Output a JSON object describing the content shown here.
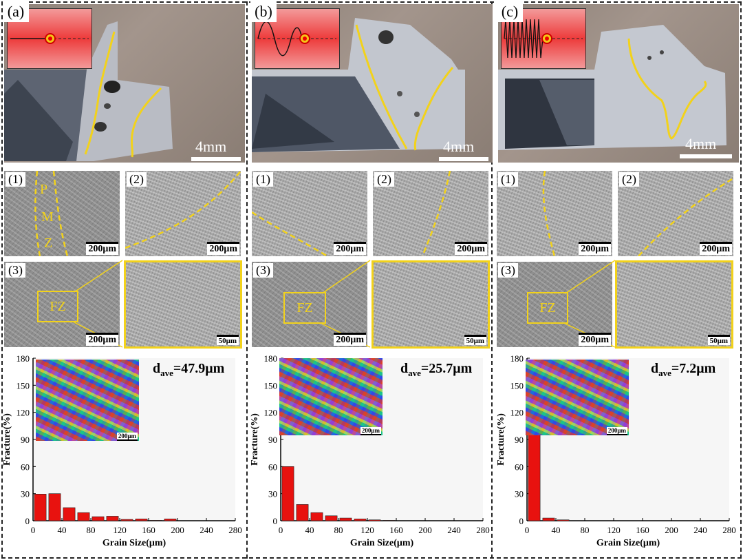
{
  "panels": [
    {
      "letter": "(a)",
      "photo_scale": "4mm",
      "micro": [
        {
          "tag": "(1)",
          "scale": "200μm",
          "labels": [
            "P",
            "M",
            "Z"
          ]
        },
        {
          "tag": "(2)",
          "scale": "200μm"
        },
        {
          "tag": "(3)",
          "scale": "200μm",
          "fz": "FZ"
        },
        {
          "scale": "50μm"
        }
      ],
      "dave_symbol": "d",
      "dave_sub": "ave",
      "dave_value": "=47.9μm",
      "ebsd_scale": "200μm"
    },
    {
      "letter": "(b)",
      "photo_scale": "4mm",
      "micro": [
        {
          "tag": "(1)",
          "scale": "200μm"
        },
        {
          "tag": "(2)",
          "scale": "200μm"
        },
        {
          "tag": "(3)",
          "scale": "200μm",
          "fz": "FZ"
        },
        {
          "scale": "50μm"
        }
      ],
      "dave_symbol": "d",
      "dave_sub": "ave",
      "dave_value": "=25.7μm",
      "ebsd_scale": "200μm"
    },
    {
      "letter": "(c)",
      "photo_scale": "4mm",
      "micro": [
        {
          "tag": "(1)",
          "scale": "200μm"
        },
        {
          "tag": "(2)",
          "scale": "200μm"
        },
        {
          "tag": "(3)",
          "scale": "200μm",
          "fz": "FZ"
        },
        {
          "scale": "50μm"
        }
      ],
      "dave_symbol": "d",
      "dave_sub": "ave",
      "dave_value": "=7.2μm",
      "ebsd_scale": "200μm"
    }
  ],
  "colors": {
    "bar": "#e8120f",
    "fusion_line": "#f2d21b",
    "schematic_red": "#ed3b3b"
  },
  "chart_data": [
    {
      "type": "bar",
      "xlabel": "Grain Size(μm)",
      "ylabel": "Fracture(%)",
      "x": [
        10,
        30,
        50,
        70,
        90,
        110,
        130,
        150,
        170,
        190
      ],
      "values": [
        29.5,
        30,
        14.5,
        9,
        4.5,
        5,
        1.5,
        2,
        0.5,
        2
      ],
      "xlim": [
        0,
        280
      ],
      "ylim": [
        0,
        180
      ],
      "xticks": [
        0,
        40,
        80,
        120,
        160,
        200,
        240,
        280
      ],
      "yticks": [
        0,
        30,
        60,
        90,
        120,
        150,
        180
      ]
    },
    {
      "type": "bar",
      "xlabel": "Grain Size(μm)",
      "ylabel": "Fracture(%)",
      "x": [
        10,
        30,
        50,
        70,
        90,
        110,
        130,
        150
      ],
      "values": [
        60,
        18,
        9,
        5.5,
        3,
        2,
        1,
        0.5
      ],
      "xlim": [
        0,
        280
      ],
      "ylim": [
        0,
        180
      ],
      "xticks": [
        0,
        40,
        80,
        120,
        160,
        200,
        240,
        280
      ],
      "yticks": [
        0,
        30,
        60,
        90,
        120,
        150,
        180
      ]
    },
    {
      "type": "bar",
      "xlabel": "Grain Size(μm)",
      "ylabel": "Fracture(%)",
      "x": [
        10,
        30,
        50
      ],
      "values": [
        95,
        3,
        1
      ],
      "xlim": [
        0,
        280
      ],
      "ylim": [
        0,
        180
      ],
      "xticks": [
        0,
        40,
        80,
        120,
        160,
        200,
        240,
        280
      ],
      "yticks": [
        0,
        30,
        60,
        90,
        120,
        150,
        180
      ]
    }
  ]
}
